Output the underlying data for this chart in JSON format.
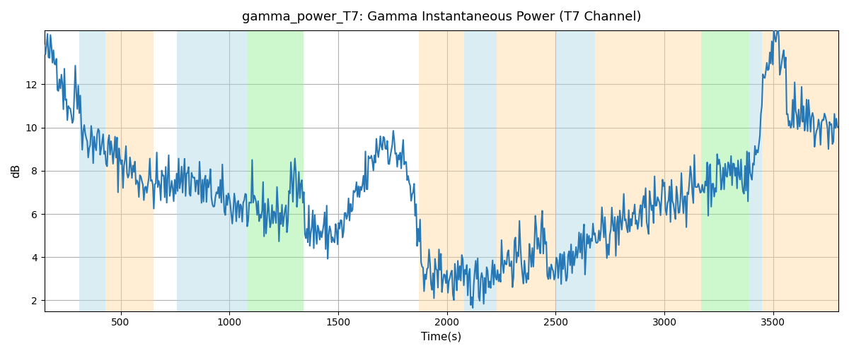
{
  "title": "gamma_power_T7: Gamma Instantaneous Power (T7 Channel)",
  "xlabel": "Time(s)",
  "ylabel": "dB",
  "xlim": [
    150,
    3800
  ],
  "ylim": [
    1.5,
    14.5
  ],
  "yticks": [
    2,
    4,
    6,
    8,
    10,
    12
  ],
  "xticks": [
    500,
    1000,
    1500,
    2000,
    2500,
    3000,
    3500
  ],
  "line_color": "#2878b5",
  "line_width": 1.5,
  "background_color": "#ffffff",
  "grid_color": "#b0b0b0",
  "shaded_regions": [
    {
      "xmin": 310,
      "xmax": 430,
      "color": "#add8e6",
      "alpha": 0.45
    },
    {
      "xmin": 430,
      "xmax": 650,
      "color": "#ffd9a0",
      "alpha": 0.45
    },
    {
      "xmin": 760,
      "xmax": 990,
      "color": "#add8e6",
      "alpha": 0.45
    },
    {
      "xmin": 990,
      "xmax": 1085,
      "color": "#add8e6",
      "alpha": 0.45
    },
    {
      "xmin": 1085,
      "xmax": 1340,
      "color": "#90ee90",
      "alpha": 0.45
    },
    {
      "xmin": 1870,
      "xmax": 2080,
      "color": "#ffd9a0",
      "alpha": 0.45
    },
    {
      "xmin": 2080,
      "xmax": 2230,
      "color": "#add8e6",
      "alpha": 0.45
    },
    {
      "xmin": 2230,
      "xmax": 2500,
      "color": "#ffd9a0",
      "alpha": 0.45
    },
    {
      "xmin": 2500,
      "xmax": 2680,
      "color": "#add8e6",
      "alpha": 0.45
    },
    {
      "xmin": 2680,
      "xmax": 3170,
      "color": "#ffd9a0",
      "alpha": 0.45
    },
    {
      "xmin": 3170,
      "xmax": 3390,
      "color": "#90ee90",
      "alpha": 0.45
    },
    {
      "xmin": 3390,
      "xmax": 3450,
      "color": "#add8e6",
      "alpha": 0.45
    },
    {
      "xmin": 3450,
      "xmax": 3800,
      "color": "#ffd9a0",
      "alpha": 0.45
    }
  ],
  "seed": 42
}
